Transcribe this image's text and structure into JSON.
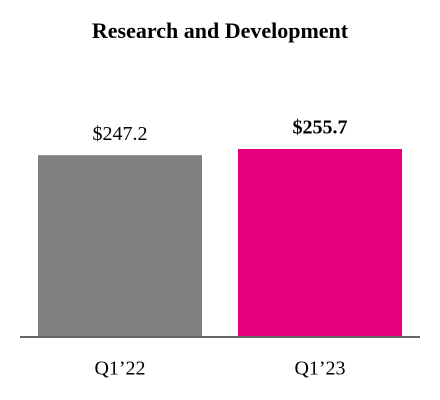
{
  "chart_data": {
    "type": "bar",
    "title": "Research and Development",
    "categories": [
      "Q1’22",
      "Q1’23"
    ],
    "values": [
      247.2,
      255.7
    ],
    "value_labels": [
      "$247.2",
      "$255.7"
    ],
    "value_label_bold": [
      false,
      true
    ],
    "colors": [
      "#808080",
      "#e6007e"
    ]
  }
}
